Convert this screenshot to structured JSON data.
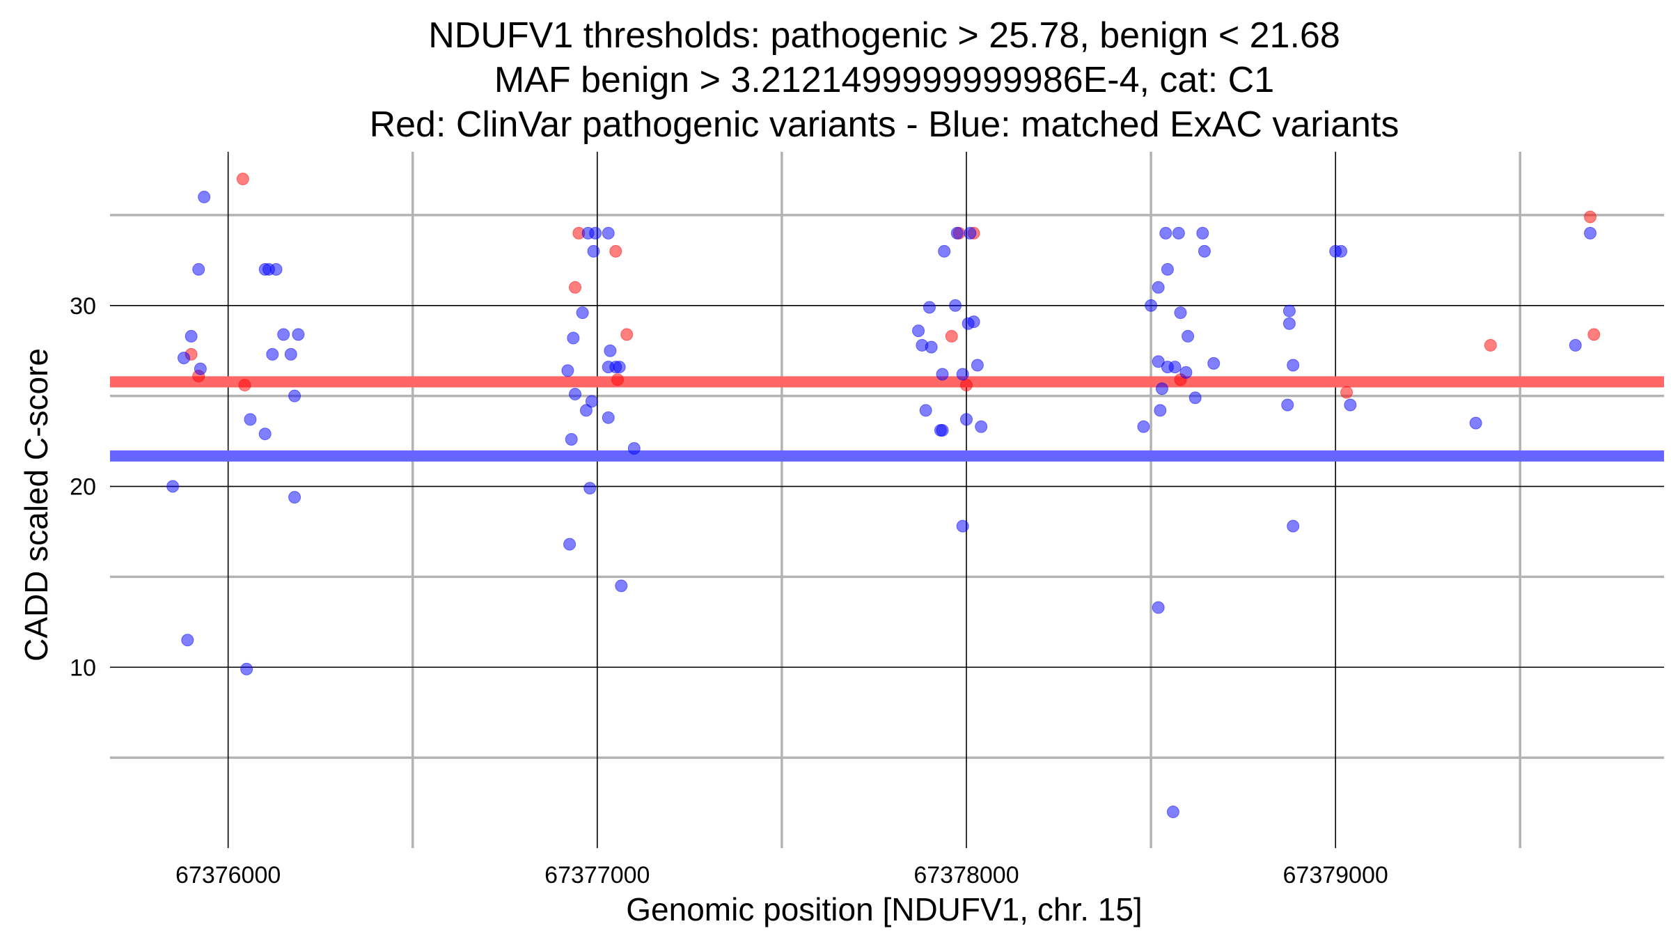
{
  "chart_data": {
    "type": "scatter",
    "title_lines": [
      "NDUFV1 thresholds: pathogenic > 25.78, benign < 21.68",
      "MAF benign > 3.2121499999999986E-4, cat: C1",
      "Red: ClinVar pathogenic variants - Blue: matched ExAC variants"
    ],
    "xlabel": "Genomic position [NDUFV1, chr. 15]",
    "ylabel": "CADD scaled C-score",
    "xlim": [
      67375680,
      67379890
    ],
    "ylim": [
      0,
      38.5
    ],
    "x_ticks": [
      67376000,
      67377000,
      67378000,
      67379000
    ],
    "x_tick_labels": [
      "67376000",
      "67377000",
      "67378000",
      "67379000"
    ],
    "y_ticks": [
      10,
      20,
      30
    ],
    "y_tick_labels": [
      "10",
      "20",
      "30"
    ],
    "x_minor_grid": [
      67376500,
      67377500,
      67378500,
      67379500
    ],
    "y_minor_grid": [
      5,
      15,
      25,
      35
    ],
    "thresholds": [
      {
        "value": 25.78,
        "color": "#ff6666"
      },
      {
        "value": 21.68,
        "color": "#6666ff"
      }
    ],
    "series": [
      {
        "color": "#ff0000",
        "points": [
          [
            67375900,
            27.3
          ],
          [
            67375920,
            26.1
          ],
          [
            67376040,
            37.0
          ],
          [
            67376045,
            25.6
          ],
          [
            67376940,
            31.0
          ],
          [
            67376950,
            34.0
          ],
          [
            67377050,
            33.0
          ],
          [
            67377055,
            25.9
          ],
          [
            67377080,
            28.4
          ],
          [
            67377960,
            28.3
          ],
          [
            67377980,
            34.0
          ],
          [
            67378000,
            25.6
          ],
          [
            67378020,
            34.0
          ],
          [
            67378580,
            25.9
          ],
          [
            67379030,
            25.2
          ],
          [
            67379420,
            27.8
          ],
          [
            67379690,
            34.9
          ],
          [
            67379700,
            28.4
          ]
        ]
      },
      {
        "color": "#0000ff",
        "points": [
          [
            67375850,
            20.0
          ],
          [
            67375880,
            27.1
          ],
          [
            67375890,
            11.5
          ],
          [
            67375900,
            28.3
          ],
          [
            67375920,
            32.0
          ],
          [
            67375925,
            26.5
          ],
          [
            67375935,
            36.0
          ],
          [
            67376050,
            9.9
          ],
          [
            67376060,
            23.7
          ],
          [
            67376100,
            22.9
          ],
          [
            67376100,
            32.0
          ],
          [
            67376110,
            32.0
          ],
          [
            67376120,
            27.3
          ],
          [
            67376130,
            32.0
          ],
          [
            67376150,
            28.4
          ],
          [
            67376170,
            27.3
          ],
          [
            67376180,
            25.0
          ],
          [
            67376180,
            19.4
          ],
          [
            67376190,
            28.4
          ],
          [
            67376920,
            26.4
          ],
          [
            67376925,
            16.8
          ],
          [
            67376930,
            22.6
          ],
          [
            67376935,
            28.2
          ],
          [
            67376940,
            25.1
          ],
          [
            67376960,
            29.6
          ],
          [
            67376970,
            24.2
          ],
          [
            67376975,
            34.0
          ],
          [
            67376980,
            19.9
          ],
          [
            67376985,
            24.7
          ],
          [
            67376990,
            33.0
          ],
          [
            67376995,
            34.0
          ],
          [
            67377030,
            34.0
          ],
          [
            67377030,
            23.8
          ],
          [
            67377030,
            26.6
          ],
          [
            67377035,
            27.5
          ],
          [
            67377050,
            26.6
          ],
          [
            67377060,
            26.6
          ],
          [
            67377065,
            14.5
          ],
          [
            67377100,
            22.1
          ],
          [
            67377870,
            28.6
          ],
          [
            67377880,
            27.8
          ],
          [
            67377890,
            24.2
          ],
          [
            67377900,
            29.9
          ],
          [
            67377905,
            27.7
          ],
          [
            67377930,
            23.1
          ],
          [
            67377935,
            23.1
          ],
          [
            67377935,
            26.2
          ],
          [
            67377940,
            33.0
          ],
          [
            67377970,
            30.0
          ],
          [
            67377975,
            34.0
          ],
          [
            67377990,
            26.2
          ],
          [
            67377990,
            17.8
          ],
          [
            67378000,
            23.7
          ],
          [
            67378005,
            29.0
          ],
          [
            67378010,
            34.0
          ],
          [
            67378020,
            29.1
          ],
          [
            67378030,
            26.7
          ],
          [
            67378040,
            23.3
          ],
          [
            67378480,
            23.3
          ],
          [
            67378500,
            30.0
          ],
          [
            67378520,
            13.3
          ],
          [
            67378520,
            31.0
          ],
          [
            67378520,
            26.9
          ],
          [
            67378525,
            24.2
          ],
          [
            67378530,
            25.4
          ],
          [
            67378540,
            34.0
          ],
          [
            67378545,
            32.0
          ],
          [
            67378545,
            26.6
          ],
          [
            67378560,
            2.0
          ],
          [
            67378565,
            26.6
          ],
          [
            67378575,
            34.0
          ],
          [
            67378580,
            29.6
          ],
          [
            67378595,
            26.3
          ],
          [
            67378600,
            28.3
          ],
          [
            67378620,
            24.9
          ],
          [
            67378640,
            34.0
          ],
          [
            67378645,
            33.0
          ],
          [
            67378670,
            26.8
          ],
          [
            67378870,
            24.5
          ],
          [
            67378875,
            29.7
          ],
          [
            67378875,
            29.0
          ],
          [
            67378885,
            26.7
          ],
          [
            67378885,
            17.8
          ],
          [
            67379000,
            33.0
          ],
          [
            67379015,
            33.0
          ],
          [
            67379040,
            24.5
          ],
          [
            67379380,
            23.5
          ],
          [
            67379650,
            27.8
          ],
          [
            67379690,
            34.0
          ]
        ]
      }
    ]
  }
}
